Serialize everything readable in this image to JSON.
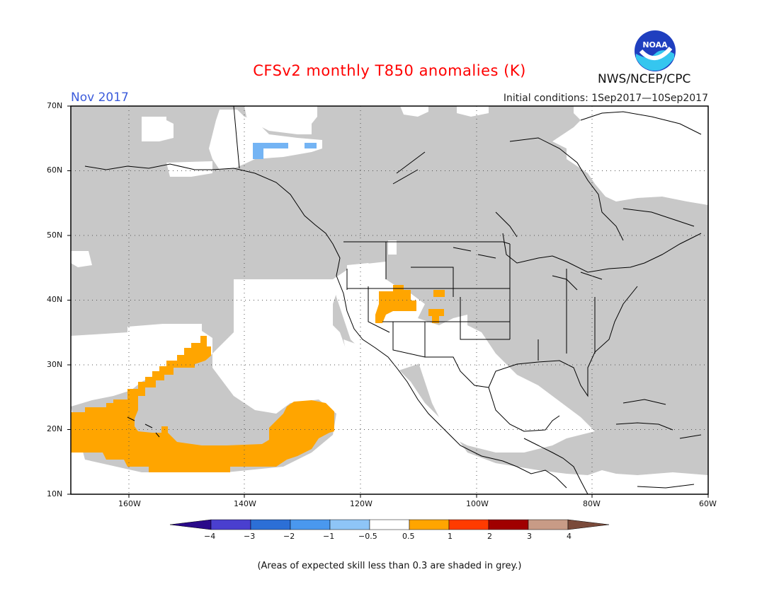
{
  "title": "CFSv2 monthly T850 anomalies (K)",
  "period": "Nov 2017",
  "initial_conditions": "Initial conditions: 1Sep2017—10Sep2017",
  "agency": "NWS/NCEP/CPC",
  "logo": {
    "name": "noaa-logo",
    "text": "NOAA"
  },
  "colors": {
    "title": "#ff0000",
    "period": "#3b5bdb",
    "grey_low_skill": "#c8c8c8",
    "warm_anomaly": "#ffa500",
    "cool_anomaly": "#74b4f4",
    "land_outline": "#000000"
  },
  "map": {
    "lon_range": [
      -170,
      -60
    ],
    "lat_range": [
      10,
      70
    ],
    "lat_labels": [
      "70N",
      "60N",
      "50N",
      "40N",
      "30N",
      "20N",
      "10N"
    ],
    "lon_labels": [
      "160W",
      "140W",
      "120W",
      "100W",
      "80W",
      "60W"
    ]
  },
  "colorbar": {
    "ticks": [
      "−4",
      "−3",
      "−2",
      "−1",
      "−0.5",
      "0.5",
      "1",
      "2",
      "3",
      "4"
    ],
    "colors": [
      "#2a0a8a",
      "#4a3fcf",
      "#2c6fd6",
      "#4a98ee",
      "#8ec5f7",
      "#ffffff",
      "#ffa500",
      "#ff3b00",
      "#a00000",
      "#c89b86",
      "#7a4a3a"
    ]
  },
  "note": "(Areas of expected skill less than 0.3 are shaded in grey.)"
}
